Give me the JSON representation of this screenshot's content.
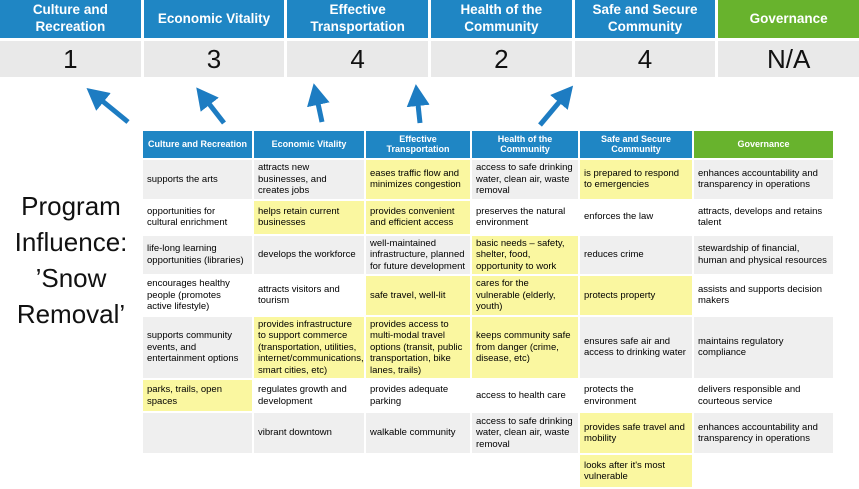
{
  "program_label": {
    "line1": "Program",
    "line2": "Influence:",
    "line3": "’Snow",
    "line4": "Removal’"
  },
  "banner": {
    "score_row_bg": "#E9E9E9",
    "items": [
      {
        "label": "Culture and Recreation",
        "score": "1",
        "bg": "#1F86C4"
      },
      {
        "label": "Economic Vitality",
        "score": "3",
        "bg": "#1F86C4"
      },
      {
        "label": "Effective Transportation",
        "score": "4",
        "bg": "#1F86C4"
      },
      {
        "label": "Health of the Community",
        "score": "2",
        "bg": "#1F86C4"
      },
      {
        "label": "Safe and Secure Community",
        "score": "4",
        "bg": "#1F86C4"
      },
      {
        "label": "Governance",
        "score": "N/A",
        "bg": "#68B32D"
      }
    ]
  },
  "arrow_color": "#1D7CC2",
  "matrix": {
    "highlight_color": "#FAF7A0",
    "stripe_color": "#EFEFEF",
    "white_color": "#FFFFFF",
    "headers": [
      {
        "label": "Culture and Recreation",
        "bg": "#1F86C4"
      },
      {
        "label": "Economic Vitality",
        "bg": "#1F86C4"
      },
      {
        "label": "Effective Transportation",
        "bg": "#1F86C4"
      },
      {
        "label": "Health of the Community",
        "bg": "#1F86C4"
      },
      {
        "label": "Safe and Secure Community",
        "bg": "#1F86C4"
      },
      {
        "label": "Governance",
        "bg": "#68B32D"
      }
    ],
    "rows": [
      [
        {
          "text": "supports the arts"
        },
        {
          "text": "attracts new businesses, and creates jobs"
        },
        {
          "text": "eases traffic flow and minimizes congestion",
          "hl": true
        },
        {
          "text": "access to safe drinking water, clean air, waste removal"
        },
        {
          "text": "is prepared to respond to emergencies",
          "hl": true
        },
        {
          "text": "enhances accountability and transparency in operations"
        }
      ],
      [
        {
          "text": "opportunities for cultural enrichment"
        },
        {
          "text": "helps retain current businesses",
          "hl": true
        },
        {
          "text": "provides convenient and efficient access",
          "hl": true
        },
        {
          "text": "preserves the natural environment"
        },
        {
          "text": "enforces the law"
        },
        {
          "text": "attracts, develops and retains talent"
        }
      ],
      [
        {
          "text": "life-long learning opportunities (libraries)"
        },
        {
          "text": "develops the workforce"
        },
        {
          "text": "well-maintained infrastructure, planned for future development"
        },
        {
          "text": "basic needs – safety, shelter, food, opportunity to work",
          "hl": true
        },
        {
          "text": "reduces crime"
        },
        {
          "text": "stewardship of financial, human and physical resources"
        }
      ],
      [
        {
          "text": "encourages healthy people (promotes active lifestyle)"
        },
        {
          "text": "attracts visitors and tourism"
        },
        {
          "text": "safe travel, well-lit",
          "hl": true
        },
        {
          "text": "cares for the vulnerable (elderly, youth)",
          "hl": true
        },
        {
          "text": "protects property",
          "hl": true
        },
        {
          "text": "assists and supports decision makers"
        }
      ],
      [
        {
          "text": "supports community events, and entertainment options"
        },
        {
          "text": "provides infrastructure to support commerce (transportation, utilities, internet/communications, smart cities, etc)",
          "hl": true
        },
        {
          "text": "provides access to multi-modal travel options (transit, public transportation, bike lanes, trails)",
          "hl": true
        },
        {
          "text": "keeps community safe from danger (crime, disease, etc)",
          "hl": true
        },
        {
          "text": "ensures safe air and access to drinking water"
        },
        {
          "text": "maintains regulatory compliance"
        }
      ],
      [
        {
          "text": "parks, trails, open spaces",
          "hl": true
        },
        {
          "text": "regulates growth and development"
        },
        {
          "text": "provides adequate parking"
        },
        {
          "text": "access to health care"
        },
        {
          "text": "protects the environment"
        },
        {
          "text": "delivers responsible and courteous service"
        }
      ],
      [
        {
          "text": ""
        },
        {
          "text": "vibrant downtown"
        },
        {
          "text": "walkable community"
        },
        {
          "text": "access to safe drinking water, clean air, waste removal"
        },
        {
          "text": "provides safe travel and mobility",
          "hl": true
        },
        {
          "text": "enhances accountability and transparency in operations"
        }
      ],
      [
        {
          "text": ""
        },
        {
          "text": ""
        },
        {
          "text": ""
        },
        {
          "text": ""
        },
        {
          "text": "looks after it's most vulnerable",
          "hl": true
        },
        {
          "text": ""
        }
      ]
    ]
  }
}
